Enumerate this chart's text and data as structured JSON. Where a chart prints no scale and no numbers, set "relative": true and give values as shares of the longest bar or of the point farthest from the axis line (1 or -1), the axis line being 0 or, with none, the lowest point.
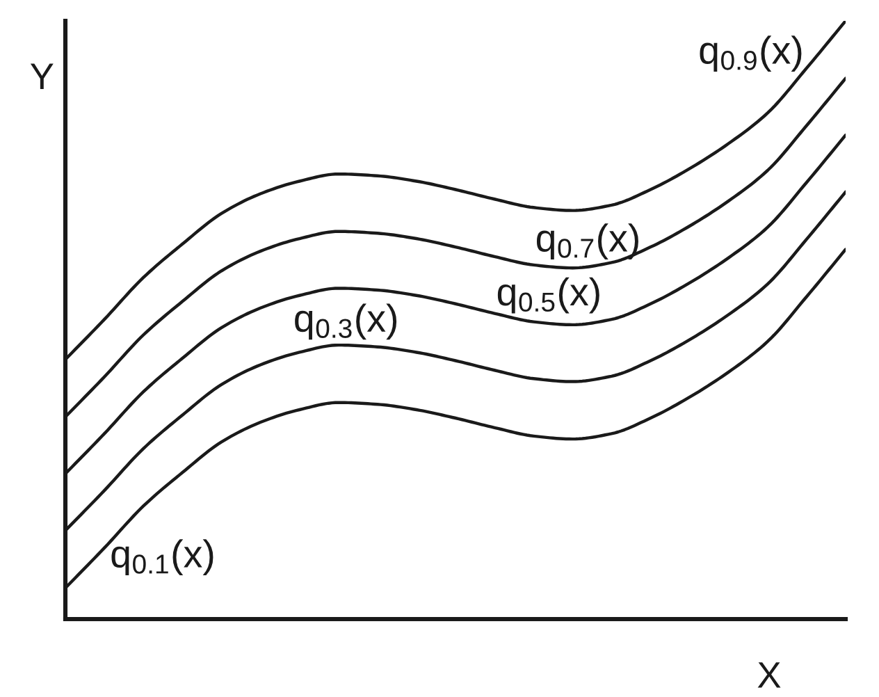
{
  "chart_data": {
    "type": "line",
    "xlabel": "X",
    "ylabel": "Y",
    "relative": true,
    "categories": [
      null,
      null,
      null,
      null,
      null,
      null,
      null,
      null,
      null,
      null,
      null,
      null,
      null,
      null,
      null,
      null,
      null,
      null,
      null,
      null,
      null
    ],
    "series": [
      {
        "name": "q$_{0.9}$(x)",
        "color": "#1a1a1a",
        "values": [
          0.434,
          0.501,
          0.571,
          0.627,
          0.678,
          0.711,
          0.732,
          0.744,
          0.741,
          0.732,
          0.718,
          0.702,
          0.688,
          0.683,
          0.692,
          0.718,
          0.753,
          0.795,
          0.846,
          0.921,
          1.0
        ]
      },
      {
        "name": "q$_{0.7}$(x)",
        "color": "#1a1a1a",
        "values": [
          0.338,
          0.405,
          0.475,
          0.531,
          0.582,
          0.615,
          0.636,
          0.648,
          0.645,
          0.636,
          0.622,
          0.606,
          0.592,
          0.587,
          0.596,
          0.622,
          0.657,
          0.699,
          0.75,
          0.825,
          0.904
        ]
      },
      {
        "name": "q$_{0.5}$(x)",
        "color": "#1a1a1a",
        "values": [
          0.243,
          0.31,
          0.38,
          0.436,
          0.487,
          0.52,
          0.541,
          0.553,
          0.55,
          0.541,
          0.527,
          0.511,
          0.497,
          0.492,
          0.501,
          0.527,
          0.562,
          0.604,
          0.655,
          0.73,
          0.809
        ]
      },
      {
        "name": "q$_{0.3}$(x)",
        "color": "#1a1a1a",
        "values": [
          0.148,
          0.215,
          0.285,
          0.341,
          0.392,
          0.425,
          0.446,
          0.458,
          0.455,
          0.446,
          0.432,
          0.416,
          0.402,
          0.397,
          0.406,
          0.432,
          0.467,
          0.509,
          0.56,
          0.635,
          0.714
        ]
      },
      {
        "name": "q$_{0.1}$(x)",
        "color": "#1a1a1a",
        "values": [
          0.052,
          0.119,
          0.189,
          0.245,
          0.296,
          0.329,
          0.35,
          0.362,
          0.359,
          0.35,
          0.336,
          0.32,
          0.306,
          0.301,
          0.31,
          0.336,
          0.371,
          0.413,
          0.464,
          0.539,
          0.618
        ]
      }
    ]
  }
}
